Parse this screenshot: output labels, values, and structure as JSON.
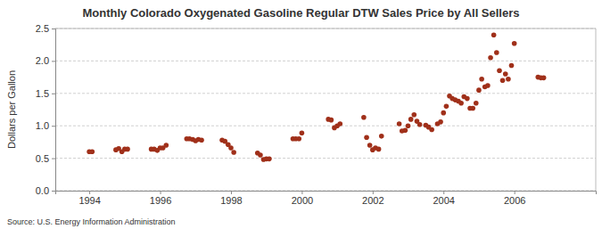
{
  "chart_data": {
    "type": "scatter",
    "title": "Monthly Colorado Oxygenated Gasoline Regular DTW Sales Price by All Sellers",
    "y_label": "Dollars per Gallon",
    "source": "Source: U.S. Energy Information Administration",
    "color": "#a0301a",
    "marker": "circle",
    "grid": true,
    "x": [
      1994.0,
      1994.08,
      1994.75,
      1994.83,
      1994.92,
      1995.0,
      1995.08,
      1995.75,
      1995.83,
      1995.92,
      1996.0,
      1996.08,
      1996.17,
      1996.75,
      1996.83,
      1996.92,
      1997.0,
      1997.08,
      1997.17,
      1997.75,
      1997.83,
      1997.92,
      1998.0,
      1998.08,
      1998.75,
      1998.83,
      1998.92,
      1999.0,
      1999.08,
      1999.75,
      1999.83,
      1999.92,
      2000.0,
      2000.75,
      2000.83,
      2000.92,
      2001.0,
      2001.08,
      2001.75,
      2001.83,
      2001.92,
      2002.0,
      2002.08,
      2002.17,
      2002.25,
      2002.75,
      2002.83,
      2002.92,
      2003.0,
      2003.08,
      2003.17,
      2003.25,
      2003.33,
      2003.5,
      2003.58,
      2003.67,
      2003.83,
      2003.92,
      2004.0,
      2004.08,
      2004.17,
      2004.25,
      2004.33,
      2004.42,
      2004.5,
      2004.58,
      2004.67,
      2004.75,
      2004.83,
      2004.92,
      2005.0,
      2005.08,
      2005.17,
      2005.25,
      2005.33,
      2005.42,
      2005.5,
      2005.58,
      2005.67,
      2005.75,
      2005.83,
      2005.92,
      2006.0,
      2006.67,
      2006.75,
      2006.83
    ],
    "y": [
      0.6,
      0.6,
      0.63,
      0.65,
      0.6,
      0.64,
      0.64,
      0.64,
      0.64,
      0.62,
      0.66,
      0.66,
      0.7,
      0.8,
      0.8,
      0.79,
      0.77,
      0.79,
      0.78,
      0.78,
      0.76,
      0.71,
      0.66,
      0.59,
      0.58,
      0.55,
      0.48,
      0.49,
      0.49,
      0.8,
      0.8,
      0.8,
      0.89,
      1.1,
      1.09,
      0.97,
      1.0,
      1.03,
      1.13,
      0.82,
      0.7,
      0.63,
      0.66,
      0.64,
      0.84,
      1.03,
      0.92,
      0.93,
      1.0,
      1.1,
      1.17,
      1.07,
      1.02,
      1.01,
      0.98,
      0.94,
      1.03,
      1.06,
      1.2,
      1.3,
      1.46,
      1.42,
      1.4,
      1.38,
      1.35,
      1.45,
      1.42,
      1.27,
      1.27,
      1.35,
      1.55,
      1.72,
      1.6,
      1.62,
      2.05,
      2.4,
      2.13,
      1.85,
      1.7,
      1.8,
      1.72,
      1.93,
      2.27,
      1.75,
      1.74,
      1.74
    ],
    "xlim": [
      1993.04,
      2008.3
    ],
    "xticks": [
      1994,
      1996,
      1998,
      2000,
      2002,
      2004,
      2006
    ],
    "ylim": [
      0,
      2.5
    ],
    "yticks": [
      {
        "value": 0,
        "label": "0.0"
      },
      {
        "value": 0.5,
        "label": "0.5"
      },
      {
        "value": 1,
        "label": "1.0"
      },
      {
        "value": 1.5,
        "label": "1.5"
      },
      {
        "value": 2,
        "label": "2.0"
      },
      {
        "value": 2.5,
        "label": "2.5"
      }
    ]
  }
}
